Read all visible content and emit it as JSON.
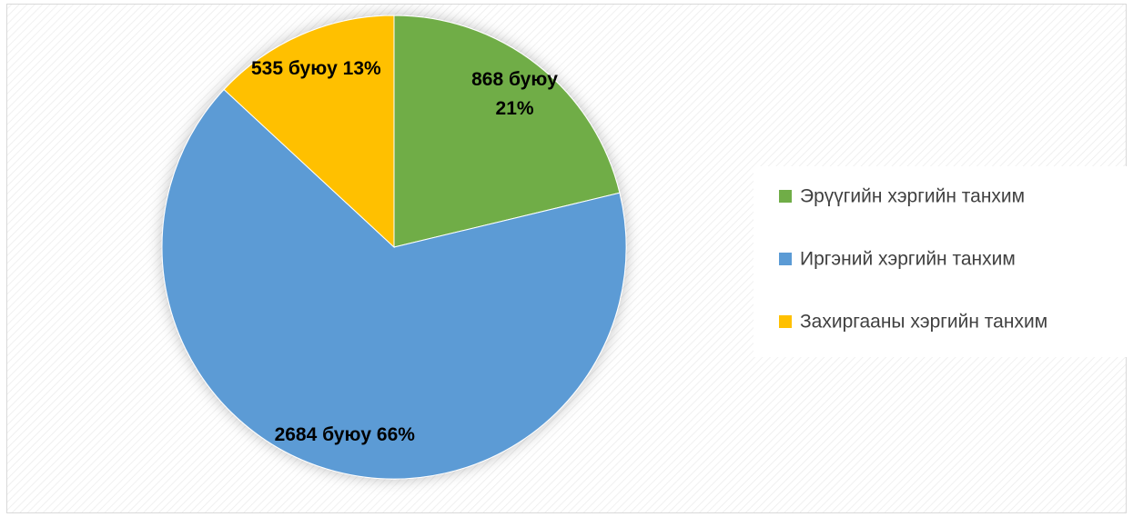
{
  "chart_data": {
    "type": "pie",
    "categories": [
      "Эрүүгийн хэргийн танхим",
      "Иргэний хэргийн танхим",
      "Захиргааны хэргийн танхим"
    ],
    "values": [
      868,
      2684,
      535
    ],
    "value_labels": [
      "868 буюу 21%",
      "2684 буюу 66%",
      "535 буюу 13%"
    ],
    "colors": [
      "#70ad47",
      "#5b9bd5",
      "#ffc000"
    ],
    "legend": "right"
  }
}
